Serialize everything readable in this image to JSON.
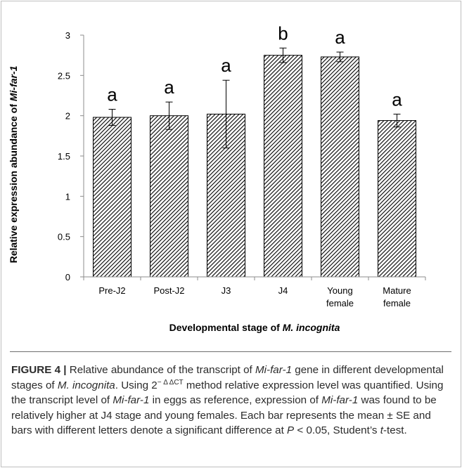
{
  "chart_data": {
    "type": "bar",
    "categories": [
      "Pre-J2",
      "Post-J2",
      "J3",
      "J4",
      "Young female",
      "Mature female"
    ],
    "category_lines": [
      [
        "Pre-J2"
      ],
      [
        "Post-J2"
      ],
      [
        "J3"
      ],
      [
        "J4"
      ],
      [
        "Young",
        "female"
      ],
      [
        "Mature",
        "female"
      ]
    ],
    "values": [
      1.98,
      2.0,
      2.02,
      2.75,
      2.73,
      1.94
    ],
    "errors": [
      0.1,
      0.17,
      0.42,
      0.09,
      0.06,
      0.08
    ],
    "letters": [
      "a",
      "a",
      "a",
      "b",
      "a",
      "a"
    ],
    "y_ticks": [
      "0",
      "0.5",
      "1",
      "1.5",
      "2",
      "2.5",
      "3"
    ],
    "ylim": [
      0,
      3
    ],
    "ylabel_prefix": "Relative expression abundance of ",
    "ylabel_italic": "Mi-far-1",
    "xlabel_prefix": "Developmental stage of ",
    "xlabel_italic": "M. incognita",
    "grid": false,
    "bar_fill": "diagonal-hatch",
    "bar_color": "#000000"
  },
  "caption": {
    "label": "FIGURE 4 |",
    "s1": " Relative abundance of the transcript of ",
    "i1": "Mi-far-1",
    "s2": " gene in different developmental stages of ",
    "i2": "M. incognita",
    "s3": ". Using 2",
    "sup": "− Δ ΔCT",
    "s4": " method relative expression level was quantified. Using the transcript level of ",
    "i3": "Mi-far-1",
    "s5": " in eggs as reference, expression of ",
    "i4": "Mi-far-1",
    "s6": " was found to be relatively higher at J4 stage and young females. Each bar represents the mean ± SE and bars with different letters denote a significant difference at ",
    "i5": "P",
    "s7": " < 0.05, Student’s ",
    "i6": "t",
    "s8": "-test."
  }
}
